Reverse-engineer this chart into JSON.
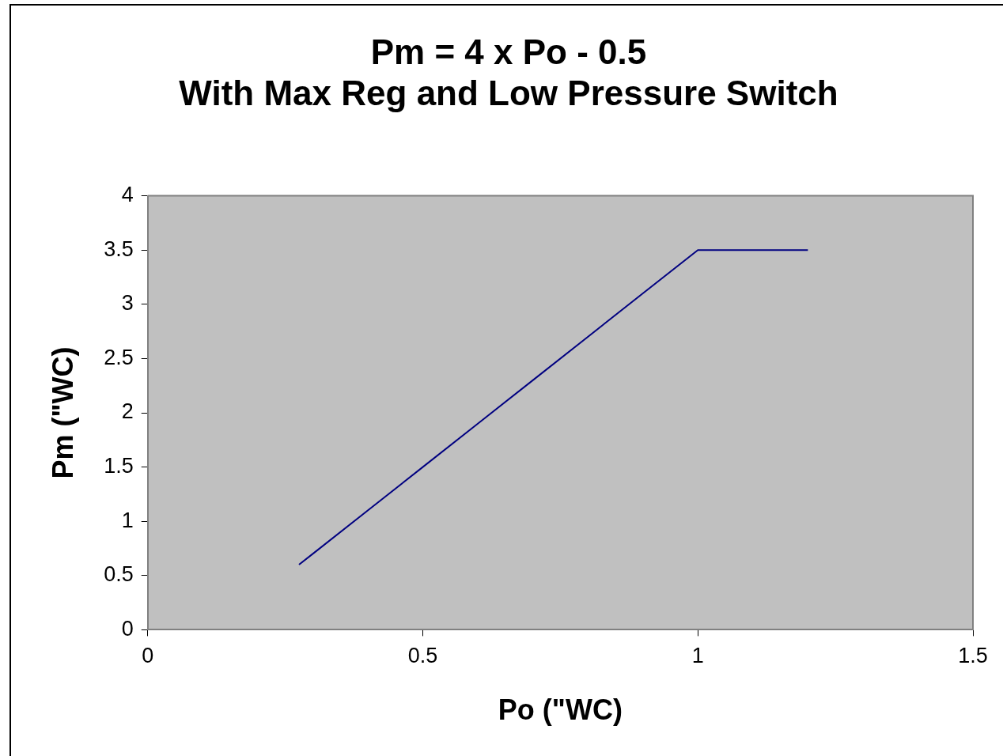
{
  "chart_data": {
    "type": "line",
    "title": "Pm = 4 x Po - 0.5\nWith Max Reg and Low Pressure Switch",
    "xlabel": "Po (\"WC)",
    "ylabel": "Pm (\"WC)",
    "x": [
      0.275,
      0.3,
      0.4,
      0.5,
      0.6,
      0.7,
      0.8,
      0.9,
      1.0,
      1.1,
      1.2
    ],
    "series": [
      {
        "color": "#000080",
        "values": [
          0.6,
          0.7,
          1.1,
          1.5,
          1.9,
          2.3,
          2.7,
          3.1,
          3.5,
          3.5,
          3.5
        ]
      }
    ],
    "xlim": [
      0,
      1.5
    ],
    "xticks": [
      0,
      0.5,
      1,
      1.5
    ],
    "ylim": [
      0,
      4
    ],
    "yticks": [
      0,
      0.5,
      1,
      1.5,
      2,
      2.5,
      3,
      3.5,
      4
    ],
    "grid": false,
    "legend": false,
    "marker": "none",
    "line_style": "solid"
  }
}
